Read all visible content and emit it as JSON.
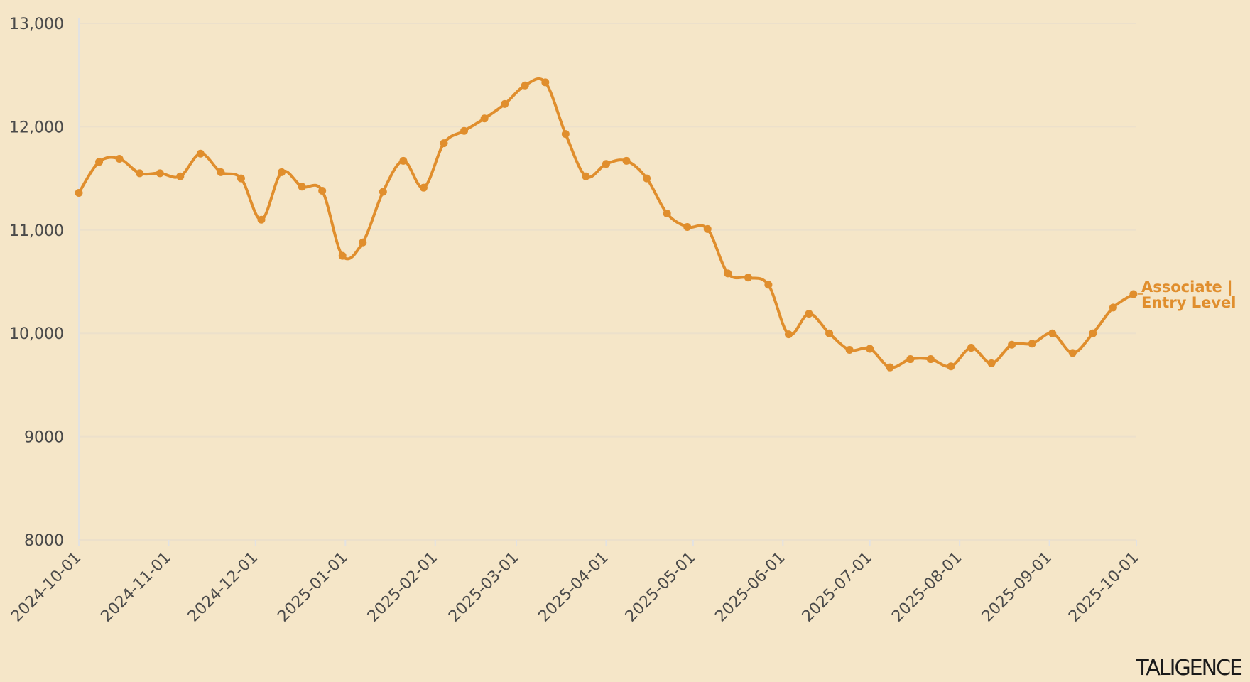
{
  "chart_data": {
    "type": "line",
    "title": "",
    "xlabel": "",
    "ylabel": "",
    "ylim": [
      8000,
      13000
    ],
    "xlim": [
      "2024-10-01",
      "2025-10-01"
    ],
    "yticks": [
      8000,
      9000,
      10000,
      11000,
      12000,
      13000
    ],
    "ytick_labels": [
      "8000",
      "9000",
      "10,000",
      "11,000",
      "12,000",
      "13,000"
    ],
    "xticks": [
      "2024-10-01",
      "2024-11-01",
      "2024-12-01",
      "2025-01-01",
      "2025-02-01",
      "2025-03-01",
      "2025-04-01",
      "2025-05-01",
      "2025-06-01",
      "2025-07-01",
      "2025-08-01",
      "2025-09-01",
      "2025-10-01"
    ],
    "grid": true,
    "colors": {
      "series": "#e08e2d",
      "grid": "#ece0cb",
      "axis": "#e2e2e2",
      "background": "#f5e6c8"
    },
    "series": [
      {
        "name": "Associate | Entry Level",
        "label_lines": [
          "Associate |",
          "Entry Level"
        ],
        "x": [
          "2024-10-01",
          "2024-10-08",
          "2024-10-15",
          "2024-10-22",
          "2024-10-29",
          "2024-11-05",
          "2024-11-12",
          "2024-11-19",
          "2024-11-26",
          "2024-12-03",
          "2024-12-10",
          "2024-12-17",
          "2024-12-24",
          "2024-12-31",
          "2025-01-07",
          "2025-01-14",
          "2025-01-21",
          "2025-01-28",
          "2025-02-04",
          "2025-02-11",
          "2025-02-18",
          "2025-02-25",
          "2025-03-04",
          "2025-03-11",
          "2025-03-18",
          "2025-03-25",
          "2025-04-01",
          "2025-04-08",
          "2025-04-15",
          "2025-04-22",
          "2025-04-29",
          "2025-05-06",
          "2025-05-13",
          "2025-05-20",
          "2025-05-27",
          "2025-06-03",
          "2025-06-10",
          "2025-06-17",
          "2025-06-24",
          "2025-07-01",
          "2025-07-08",
          "2025-07-15",
          "2025-07-22",
          "2025-07-29",
          "2025-08-05",
          "2025-08-12",
          "2025-08-19",
          "2025-08-26",
          "2025-09-02",
          "2025-09-09",
          "2025-09-16",
          "2025-09-23",
          "2025-09-30"
        ],
        "values": [
          11360,
          11660,
          11690,
          11550,
          11550,
          11520,
          11740,
          11560,
          11500,
          11100,
          11560,
          11420,
          11380,
          10750,
          10880,
          11370,
          11670,
          11410,
          11840,
          11960,
          12080,
          12220,
          12400,
          12430,
          11930,
          11520,
          11640,
          11670,
          11500,
          11160,
          11030,
          11010,
          10580,
          10540,
          10470,
          9990,
          10190,
          10000,
          9840,
          9850,
          9670,
          9750,
          9750,
          9680,
          9860,
          9710,
          9890,
          9900,
          10000,
          9810,
          10000,
          10250,
          10380
        ]
      }
    ]
  },
  "brand": {
    "logo_text": "TALIGENCE"
  }
}
